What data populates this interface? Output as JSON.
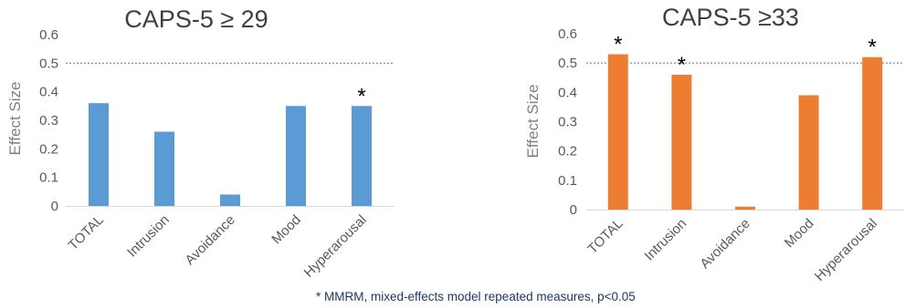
{
  "footnote": "* MMRM, mixed-effects model repeated measures, p<0.05",
  "chart_data": [
    {
      "type": "bar",
      "title": "CAPS-5 ≥ 29",
      "ylabel": "Effect Size",
      "xlabel": "",
      "categories": [
        "TOTAL",
        "Intrusion",
        "Avoidance",
        "Mood",
        "Hyperarousal"
      ],
      "values": [
        0.36,
        0.26,
        0.04,
        0.35,
        0.35
      ],
      "significant": [
        false,
        false,
        false,
        false,
        true
      ],
      "significance_marker": "*",
      "reference_line": 0.5,
      "ylim": [
        0,
        0.6
      ],
      "yticks": [
        "0",
        "0.1",
        "0.2",
        "0.3",
        "0.4",
        "0.5",
        "0.6"
      ],
      "bar_color": "#5b9bd5",
      "reference_line_color": "#4a8fc8",
      "grid": false
    },
    {
      "type": "bar",
      "title": "CAPS-5 ≥33",
      "ylabel": "Effect Size",
      "xlabel": "",
      "categories": [
        "TOTAL",
        "Intrusion",
        "Avoidance",
        "Mood",
        "Hyperarousal"
      ],
      "values": [
        0.53,
        0.46,
        0.01,
        0.39,
        0.52
      ],
      "significant": [
        true,
        true,
        false,
        false,
        true
      ],
      "significance_marker": "*",
      "reference_line": 0.5,
      "ylim": [
        0,
        0.6
      ],
      "yticks": [
        "0",
        "0.1",
        "0.2",
        "0.3",
        "0.4",
        "0.5",
        "0.6"
      ],
      "bar_color": "#ed7d31",
      "reference_line_color": "#4a8fc8",
      "grid": false
    }
  ]
}
